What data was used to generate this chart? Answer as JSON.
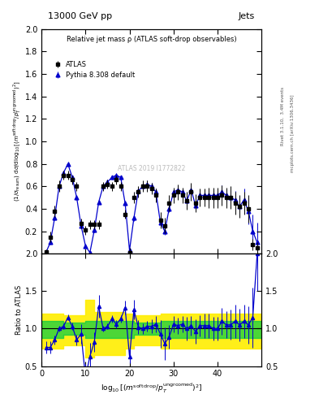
{
  "title_top": "13000 GeV pp",
  "title_right": "Jets",
  "plot_title": "Relative jet mass ρ (ATLAS soft-drop observables)",
  "watermark": "ATLAS 2019 I1772822",
  "right_label_top": "Rivet 3.1.10,  3.4M events",
  "right_label_bot": "mcplots.cern.ch [arXiv:1306.3436]",
  "ylabel_ratio": "Ratio to ATLAS",
  "xlim": [
    0,
    50
  ],
  "ylim_main": [
    0,
    2.0
  ],
  "ylim_ratio": [
    0.5,
    2.0
  ],
  "atlas_x": [
    1,
    2,
    3,
    4,
    5,
    6,
    7,
    8,
    9,
    10,
    11,
    12,
    13,
    14,
    15,
    16,
    17,
    18,
    19,
    20,
    21,
    22,
    23,
    24,
    25,
    26,
    27,
    28,
    29,
    30,
    31,
    32,
    33,
    34,
    35,
    36,
    37,
    38,
    39,
    40,
    41,
    42,
    43,
    44,
    45,
    46,
    47,
    48,
    49
  ],
  "atlas_y": [
    0.02,
    0.15,
    0.38,
    0.6,
    0.7,
    0.7,
    0.66,
    0.6,
    0.27,
    0.21,
    0.26,
    0.26,
    0.26,
    0.6,
    0.62,
    0.6,
    0.66,
    0.6,
    0.35,
    0.01,
    0.5,
    0.55,
    0.6,
    0.6,
    0.58,
    0.52,
    0.3,
    0.25,
    0.45,
    0.52,
    0.55,
    0.52,
    0.47,
    0.55,
    0.45,
    0.5,
    0.5,
    0.5,
    0.5,
    0.5,
    0.52,
    0.5,
    0.5,
    0.45,
    0.42,
    0.45,
    0.4,
    0.08,
    0.05
  ],
  "atlas_yerr": [
    0.02,
    0.05,
    0.05,
    0.05,
    0.04,
    0.04,
    0.04,
    0.04,
    0.04,
    0.04,
    0.04,
    0.04,
    0.04,
    0.04,
    0.04,
    0.04,
    0.04,
    0.04,
    0.04,
    0.04,
    0.05,
    0.05,
    0.05,
    0.05,
    0.05,
    0.06,
    0.07,
    0.07,
    0.07,
    0.07,
    0.07,
    0.07,
    0.08,
    0.08,
    0.08,
    0.08,
    0.08,
    0.09,
    0.09,
    0.09,
    0.09,
    0.09,
    0.1,
    0.1,
    0.1,
    0.1,
    0.12,
    0.05,
    0.05
  ],
  "pythia_x": [
    1,
    2,
    3,
    4,
    5,
    6,
    7,
    8,
    9,
    10,
    11,
    12,
    13,
    14,
    15,
    16,
    17,
    18,
    19,
    20,
    21,
    22,
    23,
    24,
    25,
    26,
    27,
    28,
    29,
    30,
    31,
    32,
    33,
    34,
    35,
    36,
    37,
    38,
    39,
    40,
    41,
    42,
    43,
    44,
    45,
    46,
    47,
    48,
    49
  ],
  "pythia_y": [
    0.01,
    0.1,
    0.32,
    0.6,
    0.72,
    0.8,
    0.68,
    0.5,
    0.25,
    0.07,
    0.01,
    0.21,
    0.46,
    0.6,
    0.64,
    0.68,
    0.7,
    0.68,
    0.45,
    0.03,
    0.32,
    0.56,
    0.6,
    0.62,
    0.6,
    0.55,
    0.28,
    0.2,
    0.4,
    0.55,
    0.57,
    0.55,
    0.47,
    0.57,
    0.43,
    0.52,
    0.52,
    0.52,
    0.52,
    0.52,
    0.55,
    0.52,
    0.5,
    0.48,
    0.42,
    0.48,
    0.38,
    0.2,
    0.1
  ],
  "pythia_yerr": [
    0.01,
    0.02,
    0.02,
    0.02,
    0.02,
    0.02,
    0.02,
    0.02,
    0.02,
    0.02,
    0.01,
    0.02,
    0.02,
    0.02,
    0.02,
    0.02,
    0.02,
    0.02,
    0.02,
    0.01,
    0.03,
    0.03,
    0.03,
    0.03,
    0.03,
    0.03,
    0.03,
    0.03,
    0.03,
    0.03,
    0.03,
    0.03,
    0.04,
    0.04,
    0.04,
    0.04,
    0.05,
    0.05,
    0.05,
    0.05,
    0.06,
    0.06,
    0.07,
    0.08,
    0.09,
    0.1,
    0.12,
    0.15,
    0.18
  ],
  "ratio_x": [
    1,
    2,
    3,
    4,
    5,
    6,
    7,
    8,
    9,
    10,
    11,
    12,
    13,
    14,
    15,
    16,
    17,
    18,
    19,
    20,
    21,
    22,
    23,
    24,
    25,
    26,
    27,
    28,
    29,
    30,
    31,
    32,
    33,
    34,
    35,
    36,
    37,
    38,
    39,
    40,
    41,
    42,
    43,
    44,
    45,
    46,
    47,
    48,
    49
  ],
  "ratio_y": [
    0.75,
    0.75,
    0.85,
    1.0,
    1.03,
    1.15,
    1.03,
    0.85,
    0.93,
    0.35,
    0.63,
    0.82,
    1.3,
    1.0,
    1.03,
    1.13,
    1.06,
    1.13,
    1.28,
    0.63,
    1.25,
    1.02,
    1.0,
    1.03,
    1.03,
    1.06,
    0.93,
    0.8,
    0.89,
    1.06,
    1.04,
    1.06,
    1.0,
    1.04,
    0.96,
    1.04,
    1.04,
    1.04,
    1.0,
    1.0,
    1.1,
    1.05,
    1.05,
    1.1,
    1.05,
    1.1,
    1.05,
    1.15,
    2.0
  ],
  "ratio_yerr": [
    0.08,
    0.08,
    0.06,
    0.04,
    0.04,
    0.04,
    0.05,
    0.07,
    0.13,
    0.18,
    0.18,
    0.13,
    0.15,
    0.04,
    0.04,
    0.05,
    0.05,
    0.05,
    0.09,
    0.09,
    0.13,
    0.09,
    0.07,
    0.07,
    0.09,
    0.11,
    0.18,
    0.22,
    0.16,
    0.11,
    0.11,
    0.11,
    0.16,
    0.13,
    0.16,
    0.14,
    0.16,
    0.16,
    0.16,
    0.16,
    0.18,
    0.18,
    0.2,
    0.22,
    0.22,
    0.22,
    0.25,
    0.4,
    0.5
  ],
  "green_band_x_edges": [
    0,
    5,
    10,
    12,
    19,
    21,
    27,
    50
  ],
  "green_band_lo_vals": [
    0.88,
    0.92,
    0.88,
    0.88,
    0.88,
    0.92,
    0.88,
    0.88
  ],
  "green_band_hi_vals": [
    1.1,
    1.08,
    1.1,
    1.1,
    1.1,
    1.08,
    1.1,
    1.1
  ],
  "yellow_band_x_edges": [
    0,
    5,
    10,
    12,
    19,
    21,
    27,
    50
  ],
  "yellow_band_lo_vals": [
    0.73,
    0.78,
    0.62,
    0.65,
    0.73,
    0.78,
    0.73,
    0.73
  ],
  "yellow_band_hi_vals": [
    1.2,
    1.18,
    1.38,
    1.22,
    1.2,
    1.18,
    1.2,
    1.2
  ],
  "atlas_color": "#000000",
  "pythia_color": "#0000cc",
  "line_color": "#0000cc",
  "green_color": "#00cc44",
  "yellow_color": "#ffee00",
  "xticks": [
    0,
    10,
    20,
    30,
    40
  ],
  "yticks_main": [
    0,
    0.2,
    0.4,
    0.6,
    0.8,
    1.0,
    1.2,
    1.4,
    1.6,
    1.8,
    2.0
  ],
  "yticks_ratio": [
    0.5,
    1.0,
    1.5,
    2.0
  ]
}
